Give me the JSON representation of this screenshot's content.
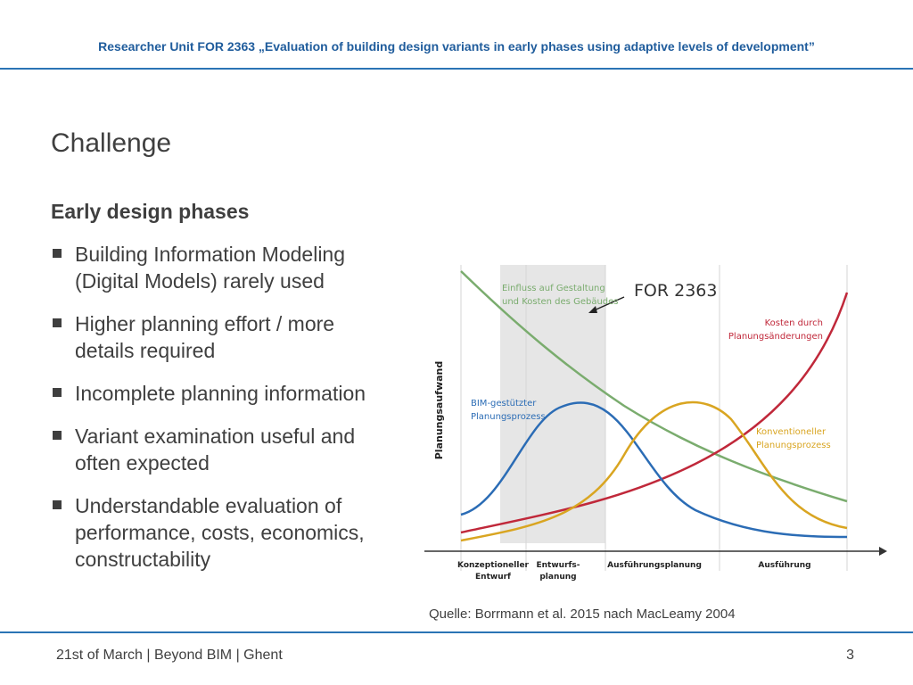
{
  "header": {
    "title": "Researcher Unit FOR 2363 „Evaluation of building design variants in early phases using adaptive levels of development”"
  },
  "slide": {
    "title": "Challenge",
    "subheading": "Early design phases",
    "bullets": [
      "Building Information Modeling (Digital Models) rarely used",
      "Higher planning effort / more details required",
      "Incomplete planning information",
      "Variant examination useful and often expected",
      "Understandable evaluation of performance, costs, economics, constructability"
    ]
  },
  "figure": {
    "y_axis_label": "Planungsaufwand",
    "callout": "FOR 2363",
    "labels": {
      "influence_line1": "Einfluss auf Gestaltung",
      "influence_line2": "und Kosten des Gebäudes",
      "cost_line1": "Kosten durch",
      "cost_line2": "Planungsänderungen",
      "bim_line1": "BIM-gestützter",
      "bim_line2": "Planungsprozess",
      "conv_line1": "Konventioneller",
      "conv_line2": "Planungsprozess"
    },
    "phases": {
      "concept_line1": "Konzeptioneller",
      "concept_line2": "Entwurf",
      "draft_line1": "Entwurfs-",
      "draft_line2": "planung",
      "execution_planning": "Ausführungsplanung",
      "execution": "Ausführung"
    },
    "colors": {
      "influence": "#7aac6e",
      "cost": "#c0283a",
      "bim": "#2b6cb5",
      "conventional": "#d9a521",
      "highlight": "#e6e6e6"
    }
  },
  "source": "Quelle: Borrmann et al. 2015 nach MacLeamy 2004",
  "footer": {
    "left": "21st of March | Beyond BIM | Ghent",
    "page_number": "3"
  }
}
